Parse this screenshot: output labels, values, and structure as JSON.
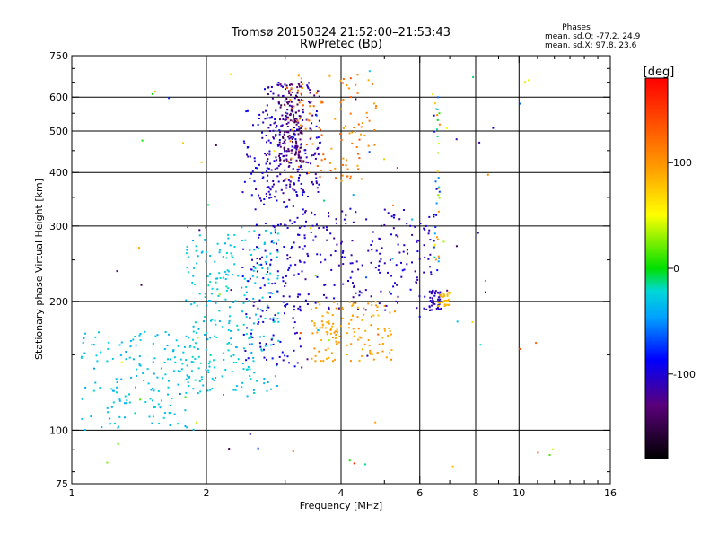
{
  "title": {
    "line1": "Tromsø 20150324 21:52:00–21:53:43",
    "line2": "RwPretec (Bp)"
  },
  "stats": {
    "heading": "Phases",
    "line_o": "mean, sd,O:  -77.2, 24.9",
    "line_x": "mean, sd,X:  97.8, 23.6"
  },
  "colorbar": {
    "unit_label": "[deg]",
    "ticks": [
      {
        "value": 100,
        "label": "100"
      },
      {
        "value": 0,
        "label": "0"
      },
      {
        "value": -100,
        "label": "-100"
      }
    ],
    "min": -180,
    "max": 180,
    "colormap": "rainbow"
  },
  "chart_data": {
    "type": "scatter",
    "title": "Tromsø 20150324 21:52:00–21:53:43",
    "subtitle": "RwPretec (Bp)",
    "xlabel": "Frequency [MHz]",
    "ylabel": "Stationary phase Virtual Height [km]",
    "x_scale": "log",
    "y_scale": "log",
    "xlim": [
      1,
      16
    ],
    "ylim": [
      75,
      750
    ],
    "x_ticks": [
      {
        "value": 1,
        "label": "1"
      },
      {
        "value": 2,
        "label": "2"
      },
      {
        "value": 4,
        "label": "4"
      },
      {
        "value": 6,
        "label": "6"
      },
      {
        "value": 8,
        "label": "8"
      },
      {
        "value": 10,
        "label": "10"
      },
      {
        "value": 16,
        "label": "16"
      }
    ],
    "y_ticks": [
      {
        "value": 75,
        "label": "75"
      },
      {
        "value": 100,
        "label": "100"
      },
      {
        "value": 200,
        "label": "200"
      },
      {
        "value": 300,
        "label": "300"
      },
      {
        "value": 400,
        "label": "400"
      },
      {
        "value": 500,
        "label": "500"
      },
      {
        "value": 600,
        "label": "600"
      },
      {
        "value": 750,
        "label": "750"
      }
    ],
    "grid_x": [
      2,
      4,
      6,
      8,
      10
    ],
    "grid_y": [
      100,
      200,
      300,
      400,
      500,
      600
    ],
    "color_by": "phase [deg]",
    "point_groups": [
      {
        "desc": "low-frequency cyan cloud",
        "x": [
          1.05,
          1.9
        ],
        "y": [
          100,
          170
        ],
        "phase": [
          -45,
          -25
        ]
      },
      {
        "desc": "mid cyan cloud",
        "x": [
          1.8,
          2.9
        ],
        "y": [
          120,
          300
        ],
        "phase": [
          -45,
          -20
        ]
      },
      {
        "desc": "blue column",
        "x": [
          2.4,
          3.3
        ],
        "y": [
          140,
          560
        ],
        "phase": [
          -115,
          -85
        ]
      },
      {
        "desc": "blue upper cloud",
        "x": [
          2.7,
          3.6
        ],
        "y": [
          350,
          650
        ],
        "phase": [
          -125,
          -95
        ]
      },
      {
        "desc": "navy dense core",
        "x": [
          2.9,
          3.3
        ],
        "y": [
          420,
          660
        ],
        "phase": [
          -150,
          -125
        ]
      },
      {
        "desc": "orange upper X-trace",
        "x": [
          3.0,
          4.8
        ],
        "y": [
          380,
          680
        ],
        "phase": [
          90,
          140
        ]
      },
      {
        "desc": "yellow lower X-trace",
        "x": [
          3.4,
          5.3
        ],
        "y": [
          145,
          200
        ],
        "phase": [
          85,
          105
        ]
      },
      {
        "desc": "blue F-layer trace",
        "x": [
          3.2,
          6.5
        ],
        "y": [
          190,
          330
        ],
        "phase": [
          -120,
          -95
        ]
      },
      {
        "desc": "blue cusp",
        "x": [
          6.3,
          6.7
        ],
        "y": [
          190,
          215
        ],
        "phase": [
          -115,
          -105
        ]
      },
      {
        "desc": "yellow cusp",
        "x": [
          6.6,
          7.0
        ],
        "y": [
          195,
          210
        ],
        "phase": [
          75,
          90
        ]
      },
      {
        "desc": "vertical streak near 6.5 MHz",
        "x": [
          6.45,
          6.65
        ],
        "y": [
          230,
          600
        ],
        "phase": [
          -100,
          120
        ]
      },
      {
        "desc": "sparse noise",
        "x": [
          1.2,
          12
        ],
        "y": [
          80,
          700
        ],
        "phase": [
          -150,
          160
        ]
      }
    ]
  }
}
